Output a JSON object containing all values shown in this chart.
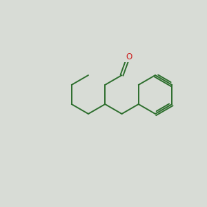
{
  "background_color": "#d8dcd6",
  "bond_color": "#2d6e2d",
  "n_color": "#2222cc",
  "o_color": "#cc2222",
  "text_color_dark": "#2d6e2d",
  "figsize": [
    3.0,
    3.0
  ],
  "dpi": 100
}
